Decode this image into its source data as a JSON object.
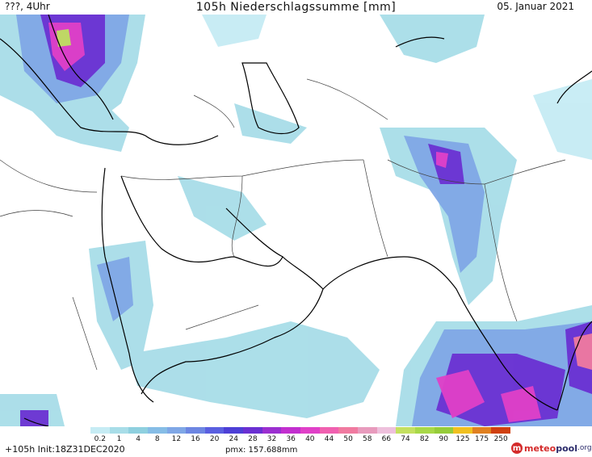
{
  "header": {
    "left": "???, 4Uhr",
    "title": "105h Niederschlagssumme [mm]",
    "right": "05. Januar 2021"
  },
  "footer": {
    "forecast": "+105h Init:18Z31DEC2020",
    "pmx": "pmx: 157.688mm"
  },
  "brand": {
    "icon": "m",
    "part1": "meteo",
    "part2": "pool",
    "part3": ".org",
    "icon_name": "meteopool-logo-icon"
  },
  "legend": {
    "labels": [
      "0.2",
      "1",
      "4",
      "8",
      "12",
      "16",
      "20",
      "24",
      "28",
      "32",
      "36",
      "40",
      "44",
      "50",
      "58",
      "66",
      "74",
      "82",
      "90",
      "125",
      "175",
      "250"
    ],
    "colors": [
      "#c6ecf4",
      "#a8dde8",
      "#8fd0df",
      "#86bde6",
      "#7fa7e6",
      "#6d86e2",
      "#5a5fe0",
      "#4d3fd6",
      "#6a30d2",
      "#9b2fd0",
      "#c22fcf",
      "#e040c8",
      "#f060b0",
      "#f07aa0",
      "#e89bbd",
      "#eec0dc",
      "#c4e060",
      "#a8d848",
      "#96cc3a",
      "#f0c020",
      "#e08020",
      "#d04010"
    ]
  },
  "colors": {
    "coast": "#000000",
    "border": "#404040",
    "precip_light": "#a8dde8",
    "precip_mid": "#7fa7e6",
    "precip_heavy": "#6a30d2",
    "precip_extreme": "#e040c8"
  }
}
